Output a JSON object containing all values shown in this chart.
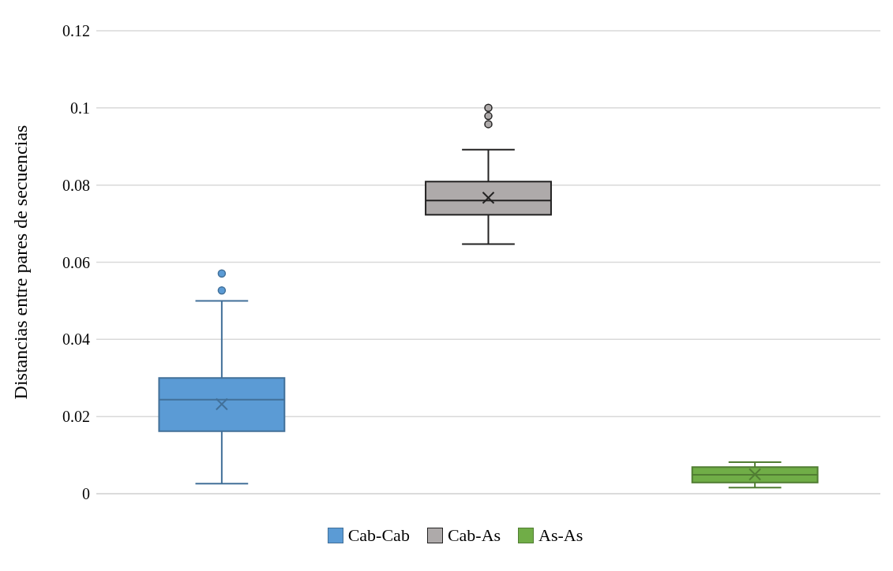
{
  "chart_data": {
    "type": "box",
    "ylabel": "Distancias entre pares de secuencias",
    "categories": [
      null
    ],
    "series": [
      {
        "name": "Cab-Cab",
        "color": "#5b9bd5",
        "boxes": [
          {
            "low": 0.0026,
            "q1": 0.0162,
            "median": 0.0244,
            "q3": 0.03,
            "high": 0.05,
            "mean": 0.0232,
            "outliers": [
              0.0527,
              0.0571
            ]
          }
        ]
      },
      {
        "name": "Cab-As",
        "color": "#aeaaaa",
        "boxes": [
          {
            "low": 0.0647,
            "q1": 0.0723,
            "median": 0.076,
            "q3": 0.0809,
            "high": 0.0892,
            "mean": 0.0767,
            "outliers": [
              0.0958,
              0.0979,
              0.1
            ]
          }
        ]
      },
      {
        "name": "As-As",
        "color": "#70ad47",
        "boxes": [
          {
            "low": 0.0016,
            "q1": 0.0029,
            "median": 0.0049,
            "q3": 0.0069,
            "high": 0.0082,
            "mean": 0.005
          }
        ]
      }
    ],
    "ylim": [
      0,
      0.12
    ],
    "yticks": [
      0,
      0.02,
      0.04,
      0.06,
      0.08,
      0.1,
      0.12
    ],
    "grid": "y",
    "legend": "bottom"
  }
}
